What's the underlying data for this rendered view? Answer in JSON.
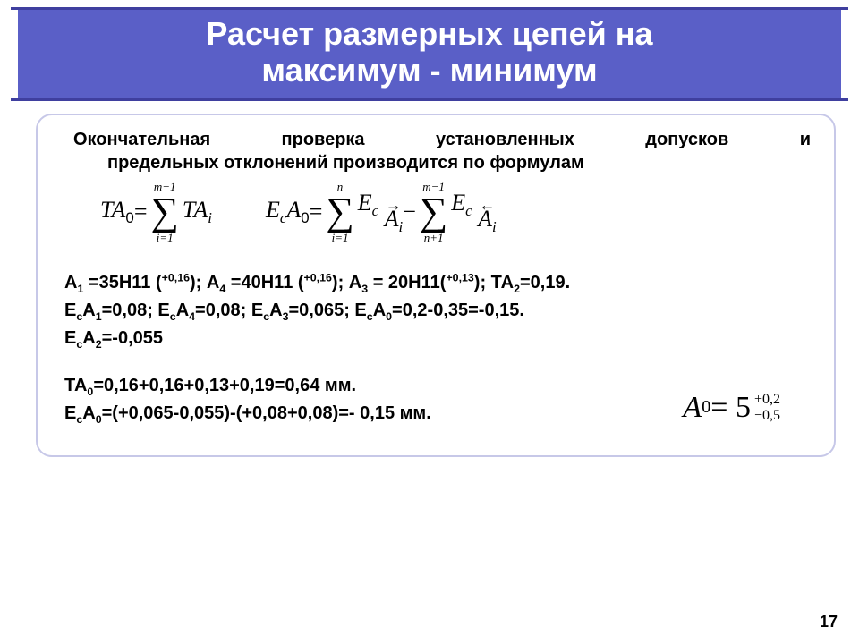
{
  "title_line1": "Расчет размерных цепей на",
  "title_line2": "максимум - минимум",
  "intro_line1": "Окончательная проверка установленных допусков и",
  "intro_line2": "предельных отклонений производится по формулам",
  "formula1": {
    "left_pre": "TA",
    "left_sub": "0",
    "eq": " = ",
    "sum_top": "m−1",
    "sum_bot": "i=1",
    "right_pre": "TA",
    "right_sub": "i"
  },
  "formula2": {
    "l_E": "E",
    "l_c": "c",
    "l_A": "A",
    "l_0": "0",
    "eq": " = ",
    "s1_top": "n",
    "s1_bot": "i=1",
    "t1_E": "E",
    "t1_c": "c",
    "t1_A": "A",
    "t1_i": "i",
    "t1_arrow": "→",
    "minus": " − ",
    "s2_top": "m−1",
    "s2_bot": "n+1",
    "t2_E": "E",
    "t2_c": "c",
    "t2_A": "A",
    "t2_i": "i",
    "t2_arrow": "←"
  },
  "lines": {
    "a1": "А",
    "a1_sub": "1",
    "a1_rest": " =35Н11 (",
    "a1_sup": "+0,16",
    "a1_end": ");  А",
    "a4_sub": "4",
    "a4_rest": " =40Н11 (",
    "a4_sup": "+0,16",
    "a4_end": ");  А",
    "a3_sub": "3",
    "a3_rest": " = 20Н11(",
    "a3_sup": "+0,13",
    "a3_end": ");   ТА",
    "ta2_sub": "2",
    "ta2_end": "=0,19.",
    "l2": "Е",
    "l2c": "с",
    "l2A": "А",
    "l2_1": "1",
    "l2_v1": "=0,08;  Е",
    "l2_4": "4",
    "l2_v4": "=0,08;  Е",
    "l2_3": "3",
    "l2_v3": "=0,065;  Е",
    "l2_0": "0",
    "l2_v0": "=0,2-0,35=-0,15.",
    "l3pre": "Е",
    "l3_2": "2",
    "l3_v": "=-0,055",
    "l5": "ТА",
    "l5_0": "0",
    "l5_rest": "=0,16+0,16+0,13+0,19=0,64 мм.",
    "l6": "Е",
    "l6_0": "0",
    "l6_rest": "=(+0,065-0,055)-(+0,08+0,08)=- 0,15 мм."
  },
  "result": {
    "A": "A",
    "zero": "0",
    "eq": " = 5",
    "up": "+0,2",
    "dn": "−0,5"
  },
  "page_num": "17",
  "colors": {
    "title_bg": "#5a5fc7",
    "rule": "#3f3f9f",
    "border": "#c7c8e8"
  }
}
